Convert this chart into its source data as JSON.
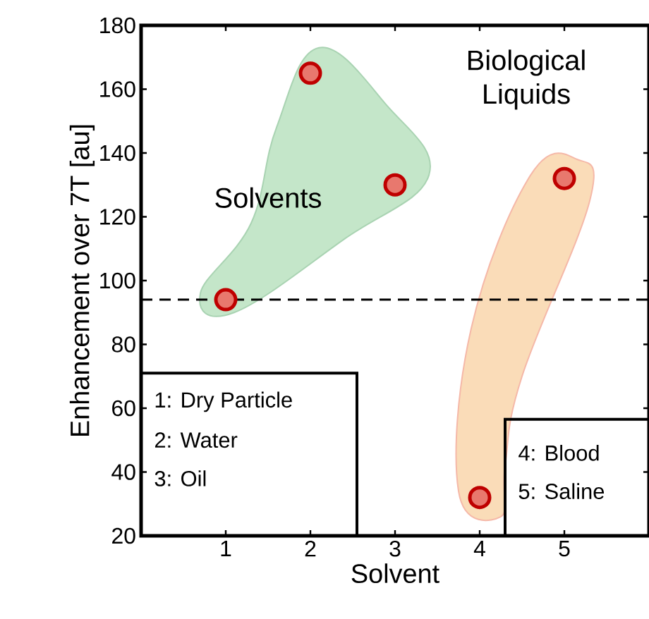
{
  "chart_data": {
    "type": "scatter",
    "xlabel": "Solvent",
    "ylabel": "Enhancement over 7T [au]",
    "x": [
      1,
      2,
      3,
      4,
      5
    ],
    "series": [
      {
        "color": "#e8786e",
        "values": [
          94,
          165,
          130,
          32,
          132
        ]
      }
    ],
    "marker": "circle",
    "xlim": [
      0,
      6
    ],
    "ylim": [
      20,
      180
    ],
    "xticks": [
      1,
      2,
      3,
      4,
      5
    ],
    "yticks": [
      20,
      40,
      60,
      80,
      100,
      120,
      140,
      160,
      180
    ],
    "ref_lines": [
      {
        "axis": "y",
        "value": 94,
        "color": "#000000",
        "line_style": "dashed"
      }
    ],
    "annotations": [
      "Solvents",
      "Biological Liquids",
      "1: Dry Particle",
      "2: Water",
      "3: Oil",
      "4: Blood",
      "5: Saline"
    ],
    "grid": false
  }
}
